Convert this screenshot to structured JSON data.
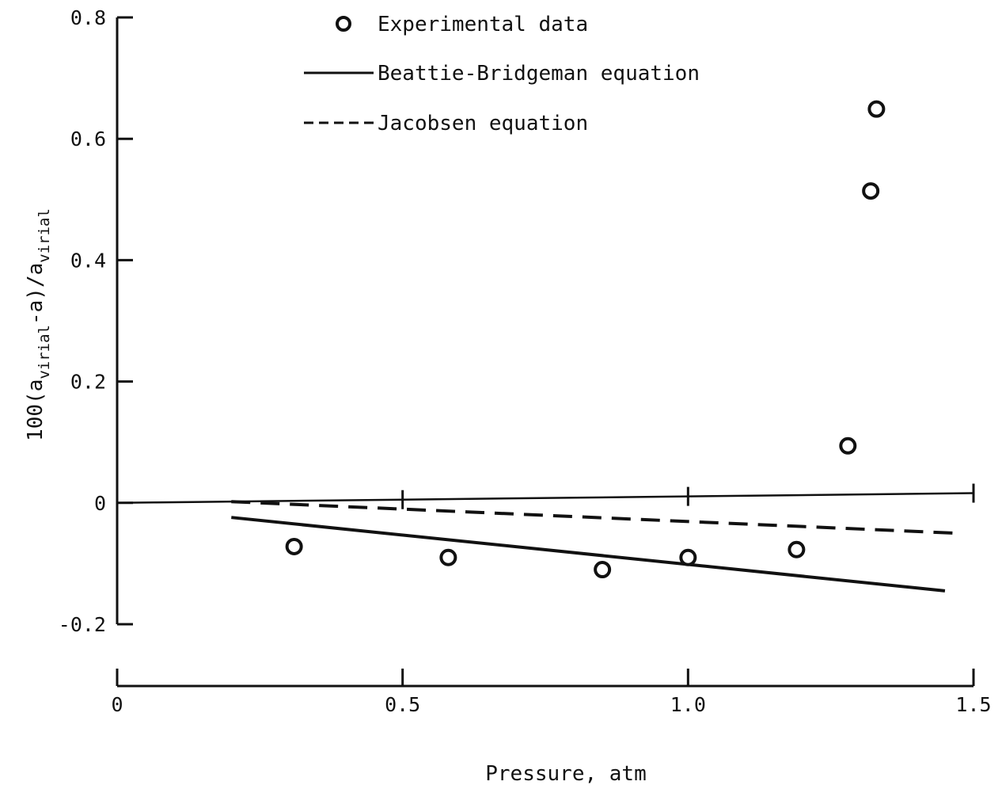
{
  "chart_data": {
    "type": "scatter",
    "title": "",
    "xlabel": "Pressure, atm",
    "ylabel": {
      "prefix": "100(a",
      "sub1": "virial",
      "middle": "-a)/a",
      "sub2": "virial"
    },
    "xlim": [
      0,
      1.5
    ],
    "ylim": [
      -0.2,
      0.8
    ],
    "x_ticks": [
      {
        "value": 0,
        "label": "0"
      },
      {
        "value": 0.5,
        "label": "0.5"
      },
      {
        "value": 1.0,
        "label": "1.0"
      },
      {
        "value": 1.5,
        "label": "1.5"
      }
    ],
    "y_ticks": [
      {
        "value": -0.2,
        "label": "-0.2"
      },
      {
        "value": 0,
        "label": "0"
      },
      {
        "value": 0.2,
        "label": "0.2"
      },
      {
        "value": 0.4,
        "label": "0.4"
      },
      {
        "value": 0.6,
        "label": "0.6"
      },
      {
        "value": 0.8,
        "label": "0.8"
      }
    ],
    "grid": false,
    "legend_position": "top",
    "series": [
      {
        "name": "Experimental data",
        "type": "scatter",
        "marker": "open-circle",
        "x": [
          0.31,
          0.58,
          0.85,
          1.0,
          1.19,
          1.28,
          1.32,
          1.33
        ],
        "y": [
          -0.072,
          -0.09,
          -0.11,
          -0.09,
          -0.077,
          0.094,
          0.514,
          0.649
        ]
      },
      {
        "name": "Beattie-Bridgeman equation",
        "type": "line",
        "style": "solid",
        "x": [
          0.2,
          1.45
        ],
        "y": [
          -0.024,
          -0.145
        ]
      },
      {
        "name": "Jacobsen equation",
        "type": "line",
        "style": "dashed",
        "x": [
          0.2,
          1.47
        ],
        "y": [
          0.002,
          -0.05
        ]
      }
    ],
    "reference_line": {
      "type": "line",
      "style": "solid",
      "x": [
        0,
        1.5
      ],
      "y": [
        0,
        0.016
      ]
    }
  }
}
